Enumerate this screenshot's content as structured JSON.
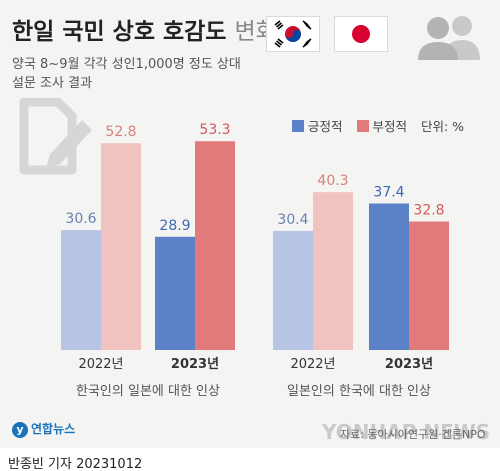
{
  "title": {
    "main": "한일 국민 상호 호감도",
    "suffix": "변화"
  },
  "subtitle": {
    "line1": "양국 8~9월 각각 성인1,000명 정도 상대",
    "line2": "설문 조사 결과"
  },
  "legend": {
    "positive": "긍정적",
    "negative": "부정적",
    "unit": "단위: %"
  },
  "colors": {
    "positive_light": "#b8c4e3",
    "positive_dark": "#5b82c6",
    "negative_light": "#f0c3c1",
    "negative_dark": "#e2797b",
    "panel_bg": "#f4f4f2"
  },
  "icons": [
    "korea-flag-icon",
    "japan-flag-icon",
    "people-icon",
    "survey-pencil-icon"
  ],
  "chart_data": [
    {
      "type": "bar",
      "title": "한국인의 일본에 대한 인상",
      "categories": [
        "2022년",
        "2023년"
      ],
      "series": [
        {
          "name": "긍정적",
          "values": [
            30.6,
            28.9
          ]
        },
        {
          "name": "부정적",
          "values": [
            52.8,
            53.3
          ]
        }
      ],
      "ylim": [
        0,
        60
      ]
    },
    {
      "type": "bar",
      "title": "일본인의 한국에 대한 인상",
      "categories": [
        "2022년",
        "2023년"
      ],
      "series": [
        {
          "name": "긍정적",
          "values": [
            30.4,
            37.4
          ]
        },
        {
          "name": "부정적",
          "values": [
            40.3,
            32.8
          ]
        }
      ],
      "ylim": [
        0,
        60
      ]
    }
  ],
  "footer": {
    "logo": "연합뉴스",
    "source": "자료: 동아시아연구원·겐론NPO",
    "watermark": "YONHAP NEWS",
    "credit": "반종빈 기자  20231012"
  }
}
